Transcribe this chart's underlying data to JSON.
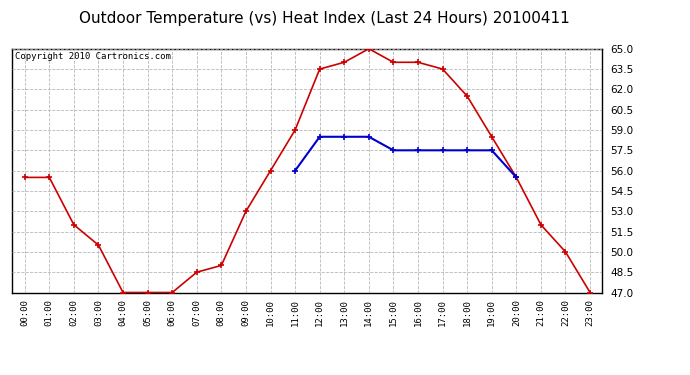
{
  "title": "Outdoor Temperature (vs) Heat Index (Last 24 Hours) 20100411",
  "copyright": "Copyright 2010 Cartronics.com",
  "hours": [
    "00:00",
    "01:00",
    "02:00",
    "03:00",
    "04:00",
    "05:00",
    "06:00",
    "07:00",
    "08:00",
    "09:00",
    "10:00",
    "11:00",
    "12:00",
    "13:00",
    "14:00",
    "15:00",
    "16:00",
    "17:00",
    "18:00",
    "19:00",
    "20:00",
    "21:00",
    "22:00",
    "23:00"
  ],
  "temp": [
    55.5,
    55.5,
    52.0,
    50.5,
    47.0,
    47.0,
    47.0,
    48.5,
    49.0,
    53.0,
    56.0,
    59.0,
    63.5,
    64.0,
    65.0,
    64.0,
    64.0,
    63.5,
    61.5,
    58.5,
    55.5,
    52.0,
    50.0,
    47.0
  ],
  "heat_index": [
    null,
    null,
    null,
    null,
    null,
    null,
    null,
    null,
    null,
    null,
    null,
    56.0,
    58.5,
    58.5,
    58.5,
    57.5,
    57.5,
    57.5,
    57.5,
    57.5,
    55.5,
    null,
    null,
    null
  ],
  "ylim": [
    47.0,
    65.0
  ],
  "yticks": [
    47.0,
    48.5,
    50.0,
    51.5,
    53.0,
    54.5,
    56.0,
    57.5,
    59.0,
    60.5,
    62.0,
    63.5,
    65.0
  ],
  "temp_color": "#cc0000",
  "heat_color": "#0000cc",
  "bg_color": "#ffffff",
  "grid_color": "#b0b0b0",
  "title_fontsize": 11,
  "copyright_fontsize": 6.5
}
